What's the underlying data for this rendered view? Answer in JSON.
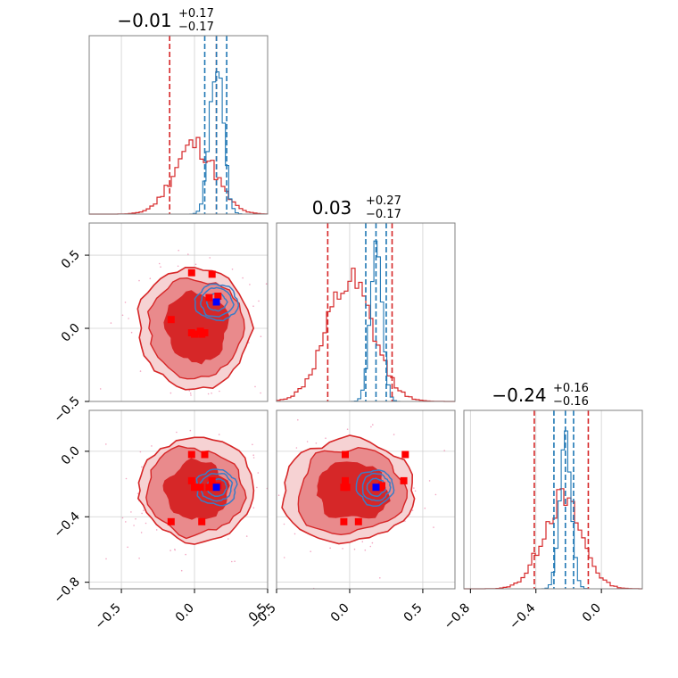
{
  "chart_data": {
    "type": "corner",
    "colors": {
      "red": "#d62728",
      "red_mid": "#e98a8c",
      "red_light": "#f6d2d3",
      "blue": "#1f77b4",
      "blue_contour": "#3a7cc6",
      "marker_red": "#ff0000",
      "marker_blue": "#0000ff",
      "grid": "#d0d0d0"
    },
    "parameters": [
      {
        "title_main": "−0.01",
        "title_plus": "+0.17",
        "title_minus": "−0.17",
        "range": [
          -0.72,
          0.5
        ]
      },
      {
        "title_main": "0.03",
        "title_plus": "+0.27",
        "title_minus": "−0.17",
        "range": [
          -0.5,
          0.72
        ]
      },
      {
        "title_main": "−0.24",
        "title_plus": "+0.16",
        "title_minus": "−0.16",
        "range": [
          -0.84,
          0.25
        ]
      }
    ],
    "ticks": [
      {
        "values": [
          -0.5,
          0.0,
          0.5
        ],
        "labels": [
          "−0.5",
          "0.0",
          "0.5"
        ]
      },
      {
        "values": [
          -0.5,
          0.0,
          0.5
        ],
        "labels": [
          "−0.5",
          "0.0",
          "0.5"
        ]
      },
      {
        "values": [
          -0.8,
          -0.4,
          0.0
        ],
        "labels": [
          "−0.8",
          "−0.4",
          "0.0"
        ]
      }
    ],
    "quantiles": {
      "red": [
        [
          -0.17,
          0.15
        ],
        [
          -0.15,
          0.29
        ],
        [
          -0.41,
          -0.08
        ]
      ],
      "blue": [
        [
          0.07,
          0.22
        ],
        [
          0.11,
          0.25
        ],
        [
          -0.29,
          -0.17
        ]
      ]
    },
    "centers": {
      "red": [
        0.0,
        0.0,
        -0.24
      ],
      "blue": [
        0.15,
        0.18,
        -0.22
      ]
    },
    "spreads": {
      "red": [
        0.14,
        0.16,
        0.12
      ],
      "blue": [
        0.045,
        0.04,
        0.035
      ]
    },
    "red_markers": [
      [
        -0.16,
        0.06,
        -0.43
      ],
      [
        -0.02,
        0.38,
        -0.02
      ],
      [
        0.05,
        -0.04,
        -0.43
      ],
      [
        0.07,
        -0.03,
        -0.02
      ],
      [
        0.04,
        -0.02,
        -0.22
      ],
      [
        -0.02,
        -0.03,
        -0.18
      ],
      [
        0.0,
        -0.04,
        -0.22
      ],
      [
        0.16,
        0.22,
        -0.21
      ],
      [
        0.1,
        0.21,
        -0.22
      ],
      [
        0.12,
        0.37,
        -0.18
      ]
    ],
    "blue_marker": [
      0.15,
      0.18,
      -0.22
    ],
    "grid": true
  }
}
